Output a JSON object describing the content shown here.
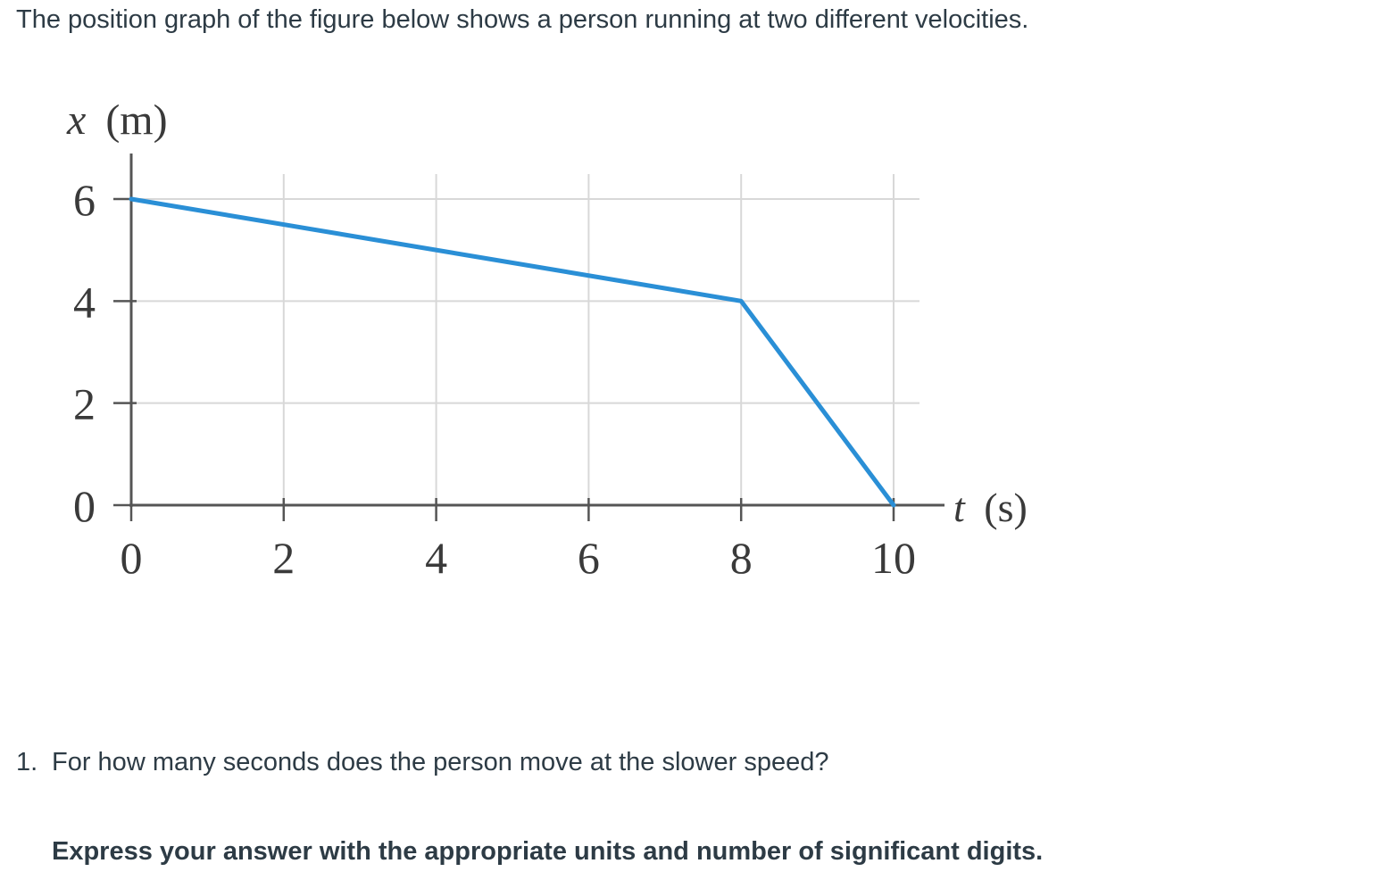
{
  "intro_text": "The position graph of the figure below shows a person running at two different velocities.",
  "question": {
    "number": "1.",
    "text": "For how many seconds does the person move at the slower speed?"
  },
  "instruction": "Express your answer with the appropriate units and number of significant digits.",
  "chart_data": {
    "type": "line",
    "title": "",
    "xlabel_var": "t",
    "xlabel_unit": "(s)",
    "ylabel_var": "x",
    "ylabel_unit": "(m)",
    "x_ticks": [
      0,
      2,
      4,
      6,
      8,
      10
    ],
    "y_ticks": [
      0,
      2,
      4,
      6
    ],
    "xlim": [
      0,
      10
    ],
    "ylim": [
      0,
      6
    ],
    "grid": true,
    "series": [
      {
        "x": [
          0,
          8,
          10
        ],
        "y": [
          6,
          4,
          0
        ],
        "color": "#2a8fd6"
      }
    ],
    "colors": {
      "line": "#2a8fd6",
      "axis": "#555555",
      "grid": "#d8d8d8"
    }
  }
}
